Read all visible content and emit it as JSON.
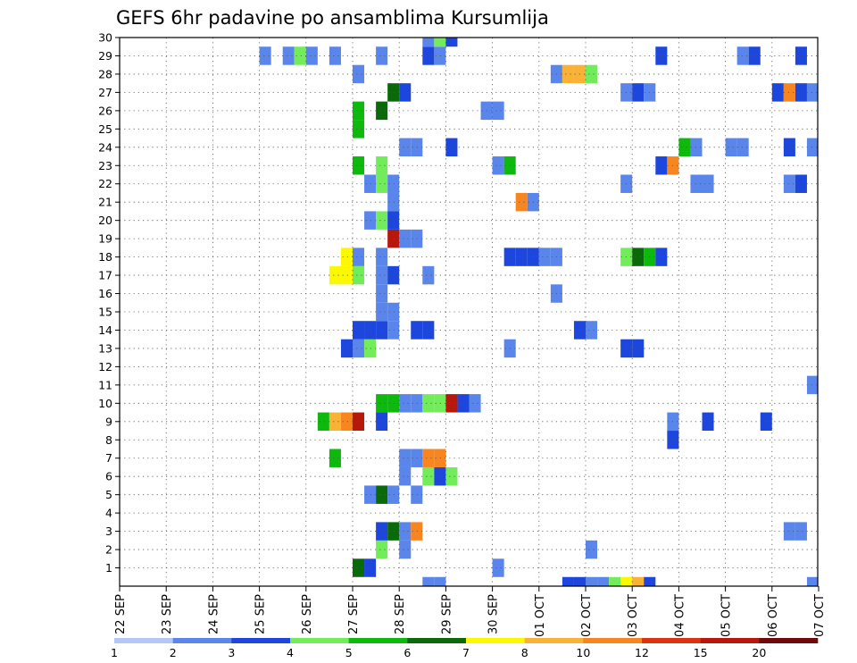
{
  "chart_data": {
    "type": "heatmap",
    "title": "GEFS 6hr padavine po ansamblima Kursumlija",
    "xlabel": "",
    "ylabel": "",
    "x_tick_labels": [
      "22 SEP",
      "23 SEP",
      "24 SEP",
      "25 SEP",
      "26 SEP",
      "27 SEP",
      "28 SEP",
      "29 SEP",
      "30 SEP",
      "01 OCT",
      "02 OCT",
      "03 OCT",
      "04 OCT",
      "05 OCT",
      "06 OCT",
      "07 OCT"
    ],
    "y_tick_labels": [
      "1",
      "2",
      "3",
      "4",
      "5",
      "6",
      "7",
      "8",
      "9",
      "10",
      "11",
      "12",
      "13",
      "14",
      "15",
      "16",
      "17",
      "18",
      "19",
      "20",
      "21",
      "22",
      "23",
      "24",
      "25",
      "26",
      "27",
      "28",
      "29",
      "30"
    ],
    "grid": true,
    "colorbar": {
      "labels": [
        "1",
        "2",
        "3",
        "4",
        "5",
        "6",
        "7",
        "8",
        "10",
        "12",
        "15",
        "20"
      ],
      "colors": [
        "#b3c8f5",
        "#5a86eb",
        "#1c46dc",
        "#73ec5c",
        "#0cb90c",
        "#0a6a0a",
        "#fbf800",
        "#f9b236",
        "#f88620",
        "#dc3410",
        "#b8180c",
        "#6e0a0a"
      ]
    },
    "x_range": [
      0,
      15
    ],
    "y_range": [
      0,
      30
    ],
    "time_step": 0.25,
    "cells": [
      [
        6.5,
        0,
        1
      ],
      [
        6.75,
        0,
        1
      ],
      [
        9.5,
        0,
        2
      ],
      [
        9.75,
        0,
        2
      ],
      [
        10.0,
        0,
        1
      ],
      [
        10.25,
        0,
        1
      ],
      [
        10.5,
        0,
        3
      ],
      [
        10.75,
        0,
        6
      ],
      [
        11.0,
        0,
        7
      ],
      [
        11.25,
        0,
        2
      ],
      [
        14.75,
        0,
        1
      ],
      [
        5.0,
        1,
        5
      ],
      [
        5.25,
        1,
        2
      ],
      [
        8.0,
        1,
        1
      ],
      [
        5.5,
        2,
        3
      ],
      [
        6.0,
        2,
        1
      ],
      [
        10.0,
        2,
        1
      ],
      [
        5.5,
        3,
        2
      ],
      [
        5.75,
        3,
        5
      ],
      [
        6.0,
        3,
        1
      ],
      [
        6.25,
        3,
        8
      ],
      [
        14.25,
        3,
        1
      ],
      [
        14.5,
        3,
        1
      ],
      [
        5.25,
        5,
        1
      ],
      [
        5.5,
        5,
        5
      ],
      [
        5.75,
        5,
        1
      ],
      [
        6.25,
        5,
        1
      ],
      [
        6.0,
        6,
        1
      ],
      [
        6.5,
        6,
        3
      ],
      [
        6.75,
        6,
        2
      ],
      [
        7.0,
        6,
        3
      ],
      [
        6.0,
        7,
        1
      ],
      [
        6.25,
        7,
        1
      ],
      [
        6.5,
        7,
        8
      ],
      [
        6.75,
        7,
        8
      ],
      [
        4.5,
        7,
        4
      ],
      [
        11.75,
        8,
        2
      ],
      [
        4.25,
        9,
        4
      ],
      [
        4.5,
        9,
        7
      ],
      [
        4.75,
        9,
        8
      ],
      [
        5.0,
        9,
        10
      ],
      [
        5.5,
        9,
        2
      ],
      [
        11.75,
        9,
        1
      ],
      [
        12.5,
        9,
        2
      ],
      [
        13.75,
        9,
        2
      ],
      [
        5.5,
        10,
        4
      ],
      [
        5.75,
        10,
        4
      ],
      [
        6.0,
        10,
        1
      ],
      [
        6.25,
        10,
        1
      ],
      [
        6.5,
        10,
        3
      ],
      [
        6.75,
        10,
        3
      ],
      [
        7.0,
        10,
        10
      ],
      [
        7.25,
        10,
        2
      ],
      [
        7.5,
        10,
        1
      ],
      [
        14.75,
        11,
        1
      ],
      [
        4.75,
        13,
        2
      ],
      [
        5.0,
        13,
        1
      ],
      [
        5.25,
        13,
        3
      ],
      [
        8.25,
        13,
        1
      ],
      [
        10.75,
        13,
        2
      ],
      [
        11.0,
        13,
        2
      ],
      [
        5.0,
        14,
        2
      ],
      [
        5.25,
        14,
        2
      ],
      [
        5.5,
        14,
        2
      ],
      [
        5.75,
        14,
        1
      ],
      [
        6.25,
        14,
        2
      ],
      [
        6.5,
        14,
        2
      ],
      [
        9.75,
        14,
        2
      ],
      [
        10.0,
        14,
        1
      ],
      [
        5.5,
        15,
        1
      ],
      [
        5.75,
        15,
        1
      ],
      [
        5.5,
        16,
        1
      ],
      [
        9.25,
        16,
        1
      ],
      [
        4.5,
        17,
        6
      ],
      [
        4.75,
        17,
        6
      ],
      [
        5.0,
        17,
        3
      ],
      [
        5.5,
        17,
        1
      ],
      [
        5.75,
        17,
        2
      ],
      [
        6.5,
        17,
        1
      ],
      [
        4.75,
        18,
        6
      ],
      [
        5.0,
        18,
        1
      ],
      [
        5.5,
        18,
        1
      ],
      [
        8.25,
        18,
        2
      ],
      [
        8.5,
        18,
        2
      ],
      [
        8.75,
        18,
        2
      ],
      [
        9.0,
        18,
        1
      ],
      [
        9.25,
        18,
        1
      ],
      [
        10.75,
        18,
        3
      ],
      [
        11.0,
        18,
        5
      ],
      [
        11.25,
        18,
        4
      ],
      [
        11.5,
        18,
        2
      ],
      [
        5.75,
        19,
        10
      ],
      [
        6.0,
        19,
        1
      ],
      [
        6.25,
        19,
        1
      ],
      [
        5.25,
        20,
        1
      ],
      [
        5.5,
        20,
        3
      ],
      [
        5.75,
        20,
        2
      ],
      [
        5.75,
        21,
        1
      ],
      [
        8.5,
        21,
        8
      ],
      [
        8.75,
        21,
        1
      ],
      [
        5.25,
        22,
        1
      ],
      [
        5.5,
        22,
        3
      ],
      [
        5.75,
        22,
        1
      ],
      [
        10.75,
        22,
        1
      ],
      [
        12.25,
        22,
        1
      ],
      [
        12.5,
        22,
        1
      ],
      [
        14.25,
        22,
        1
      ],
      [
        14.5,
        22,
        2
      ],
      [
        5.0,
        23,
        4
      ],
      [
        5.5,
        23,
        3
      ],
      [
        8.0,
        23,
        1
      ],
      [
        8.25,
        23,
        4
      ],
      [
        11.5,
        23,
        2
      ],
      [
        11.75,
        23,
        8
      ],
      [
        6.0,
        24,
        1
      ],
      [
        6.25,
        24,
        1
      ],
      [
        7.0,
        24,
        2
      ],
      [
        12.0,
        24,
        4
      ],
      [
        12.25,
        24,
        1
      ],
      [
        13.0,
        24,
        1
      ],
      [
        13.25,
        24,
        1
      ],
      [
        14.25,
        24,
        2
      ],
      [
        14.75,
        24,
        1
      ],
      [
        5.0,
        25,
        4
      ],
      [
        5.0,
        26,
        4
      ],
      [
        5.5,
        26,
        5
      ],
      [
        7.75,
        26,
        1
      ],
      [
        8.0,
        26,
        1
      ],
      [
        5.75,
        27,
        5
      ],
      [
        6.0,
        27,
        2
      ],
      [
        10.75,
        27,
        1
      ],
      [
        11.0,
        27,
        2
      ],
      [
        11.25,
        27,
        1
      ],
      [
        14.0,
        27,
        2
      ],
      [
        14.25,
        27,
        8
      ],
      [
        14.5,
        27,
        2
      ],
      [
        14.75,
        27,
        1
      ],
      [
        5.0,
        28,
        1
      ],
      [
        9.25,
        28,
        1
      ],
      [
        9.5,
        28,
        7
      ],
      [
        9.75,
        28,
        7
      ],
      [
        10.0,
        28,
        3
      ],
      [
        3.0,
        29,
        1
      ],
      [
        3.5,
        29,
        1
      ],
      [
        3.75,
        29,
        3
      ],
      [
        4.0,
        29,
        1
      ],
      [
        4.5,
        29,
        1
      ],
      [
        5.5,
        29,
        1
      ],
      [
        6.5,
        29,
        2
      ],
      [
        6.75,
        29,
        1
      ],
      [
        11.5,
        29,
        2
      ],
      [
        13.25,
        29,
        1
      ],
      [
        13.5,
        29,
        2
      ],
      [
        14.5,
        29,
        2
      ],
      [
        6.5,
        30,
        1
      ],
      [
        6.75,
        30,
        3
      ],
      [
        7.0,
        30,
        2
      ]
    ]
  }
}
